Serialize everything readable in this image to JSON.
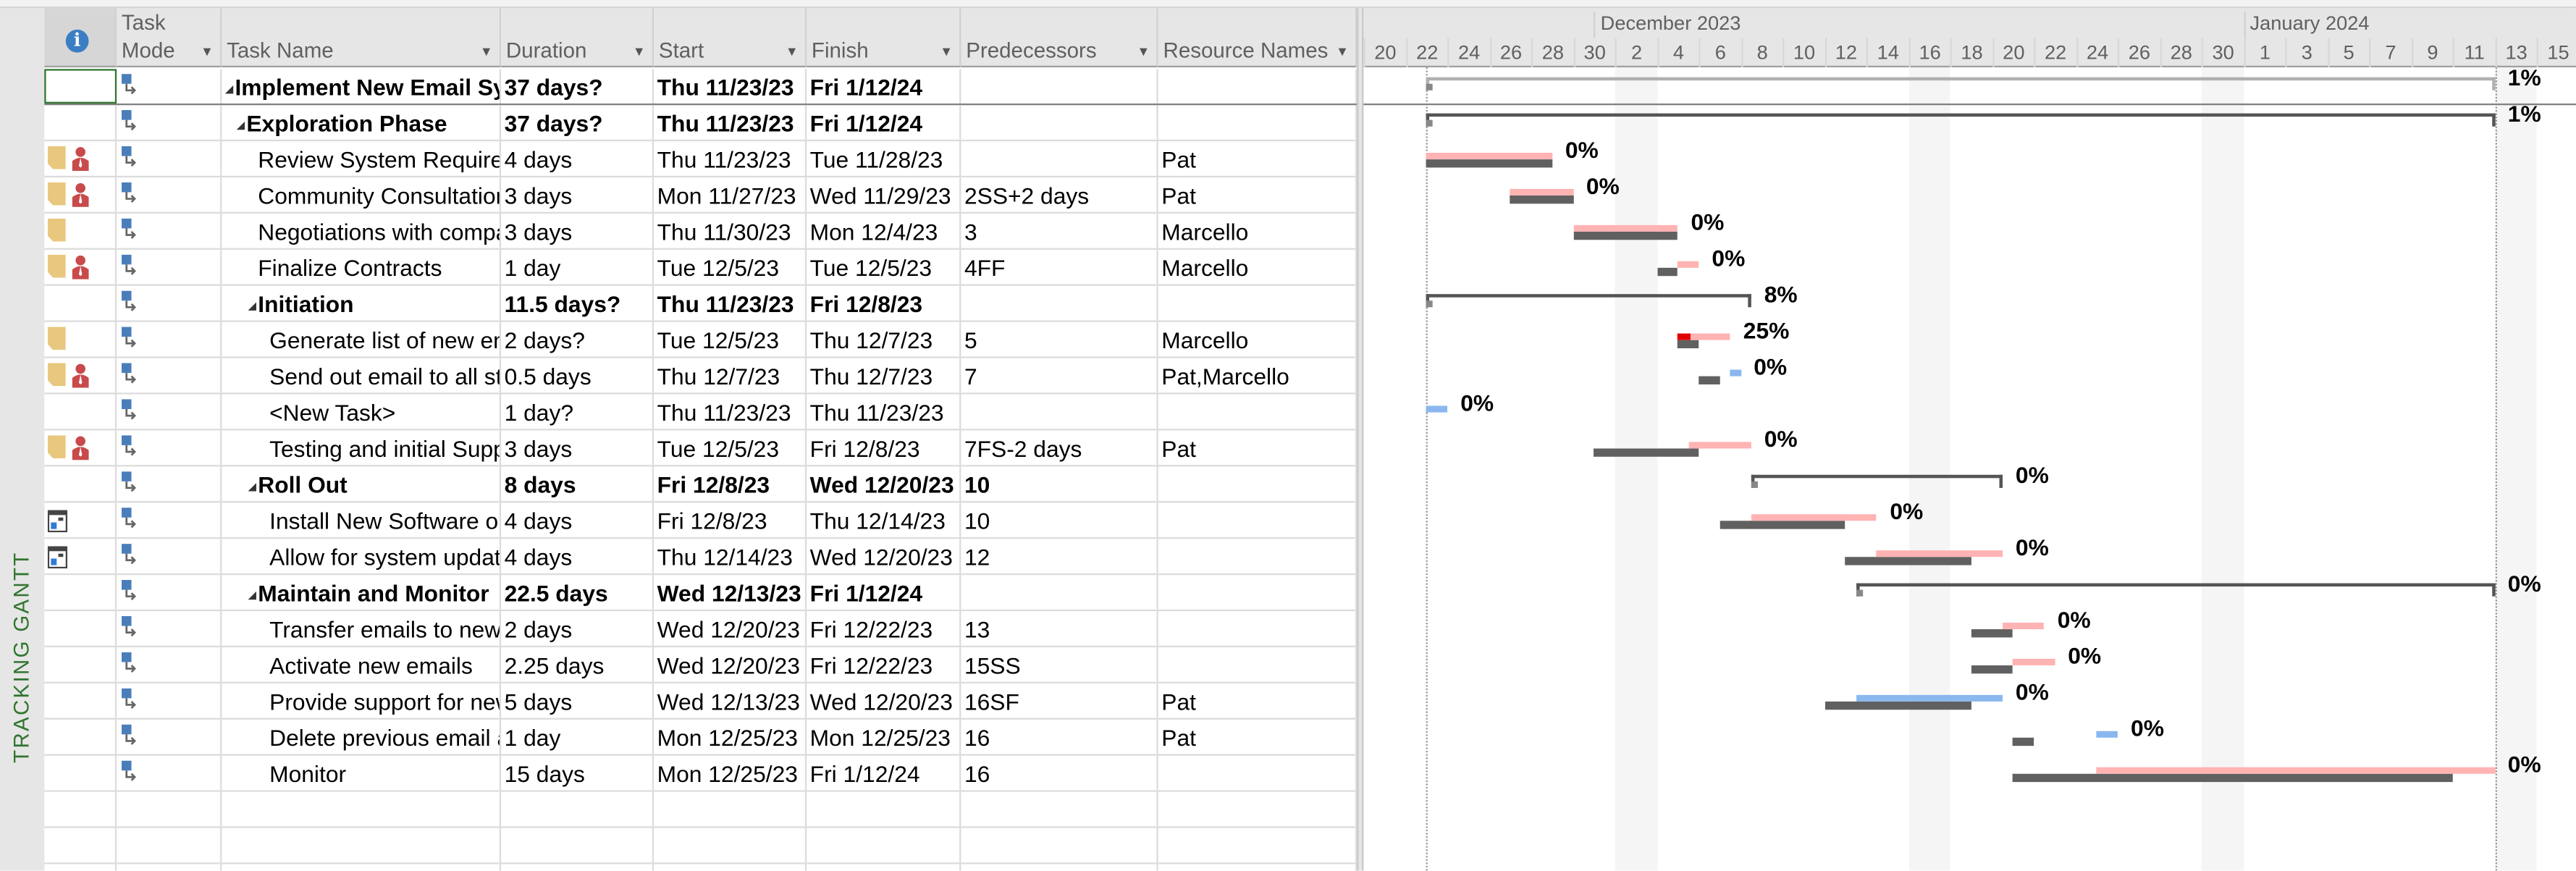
{
  "view_label": "TRACKING GANTT",
  "columns": {
    "indicators_icon": "info-icon",
    "mode_line1": "Task",
    "mode_line2": "Mode",
    "name": "Task Name",
    "duration": "Duration",
    "start": "Start",
    "finish": "Finish",
    "predecessors": "Predecessors",
    "resources": "Resource Names"
  },
  "timescale": {
    "origin": "2023-11-20",
    "months": [
      {
        "label": "December 2023",
        "start": "2023-12-01"
      },
      {
        "label": "January 2024",
        "start": "2024-01-01"
      }
    ],
    "day_labels": [
      "20",
      "22",
      "24",
      "26",
      "28",
      "30",
      "2",
      "4",
      "6",
      "8",
      "10",
      "12",
      "14",
      "16",
      "18",
      "20",
      "22",
      "24",
      "26",
      "28",
      "30",
      "1",
      "3",
      "5",
      "7",
      "9",
      "11",
      "13",
      "15"
    ],
    "shaded_periods": [
      [
        "2023-12-02",
        "2023-12-04"
      ],
      [
        "2023-12-16",
        "2023-12-18"
      ],
      [
        "2023-12-30",
        "2024-01-01"
      ],
      [
        "2024-01-13",
        "2024-01-15"
      ]
    ]
  },
  "colors": {
    "planned": "#ffb3b3",
    "progress": "#e00000",
    "baseline": "#606060",
    "manual": "#8ab8ee",
    "summary": "#555555",
    "project_summary": "#b0b0b0",
    "view_label": "#31752f"
  },
  "tasks": [
    {
      "name": "Implement New Email System",
      "duration": "37 days?",
      "start": "Thu 11/23/23",
      "finish": "Fri 1/12/24",
      "predecessors": "",
      "resources": "",
      "level": 0,
      "summary": true,
      "project": true,
      "indicators": [],
      "bar": {
        "type": "summary",
        "from": "2023-11-23",
        "to": "2024-01-13",
        "pct": "1%"
      }
    },
    {
      "name": "Exploration Phase",
      "duration": "37 days?",
      "start": "Thu 11/23/23",
      "finish": "Fri 1/12/24",
      "predecessors": "",
      "resources": "",
      "level": 1,
      "summary": true,
      "indicators": [],
      "bar": {
        "type": "summary",
        "from": "2023-11-23",
        "to": "2024-01-13",
        "pct": "1%"
      }
    },
    {
      "name": "Review System Requirements",
      "duration": "4 days",
      "start": "Thu 11/23/23",
      "finish": "Tue 11/28/23",
      "predecessors": "",
      "resources": "Pat",
      "level": 2,
      "indicators": [
        "note",
        "resource"
      ],
      "bar": {
        "type": "planned",
        "from": "2023-11-23",
        "to": "2023-11-29",
        "base_from": "2023-11-23",
        "base_to": "2023-11-29",
        "pct": "0%"
      }
    },
    {
      "name": "Community Consultation",
      "duration": "3 days",
      "start": "Mon 11/27/23",
      "finish": "Wed 11/29/23",
      "predecessors": "2SS+2 days",
      "resources": "Pat",
      "level": 2,
      "indicators": [
        "note",
        "resource"
      ],
      "bar": {
        "type": "planned",
        "from": "2023-11-27",
        "to": "2023-11-30",
        "base_from": "2023-11-27",
        "base_to": "2023-11-30",
        "pct": "0%"
      }
    },
    {
      "name": "Negotiations with companies",
      "duration": "3 days",
      "start": "Thu 11/30/23",
      "finish": "Mon 12/4/23",
      "predecessors": "3",
      "resources": "Marcello",
      "level": 2,
      "indicators": [
        "note"
      ],
      "bar": {
        "type": "planned",
        "from": "2023-11-30",
        "to": "2023-12-05",
        "base_from": "2023-11-30",
        "base_to": "2023-12-05",
        "pct": "0%"
      }
    },
    {
      "name": "Finalize Contracts",
      "duration": "1 day",
      "start": "Tue 12/5/23",
      "finish": "Tue 12/5/23",
      "predecessors": "4FF",
      "resources": "Marcello",
      "level": 2,
      "indicators": [
        "note",
        "resource"
      ],
      "bar": {
        "type": "planned",
        "from": "2023-12-05",
        "to": "2023-12-06",
        "base_from": "2023-12-04",
        "base_to": "2023-12-05",
        "pct": "0%"
      }
    },
    {
      "name": "Initiation",
      "duration": "11.5 days?",
      "start": "Thu 11/23/23",
      "finish": "Fri 12/8/23",
      "predecessors": "",
      "resources": "",
      "level": 2,
      "summary": true,
      "indicators": [],
      "bar": {
        "type": "summary",
        "from": "2023-11-23",
        "to": "2023-12-08T12:00",
        "pct": "8%"
      }
    },
    {
      "name": "Generate list of new emails",
      "duration": "2 days?",
      "start": "Tue 12/5/23",
      "finish": "Thu 12/7/23",
      "predecessors": "5",
      "resources": "Marcello",
      "level": 3,
      "indicators": [
        "note"
      ],
      "bar": {
        "type": "planned",
        "from": "2023-12-05",
        "to": "2023-12-07T12:00",
        "base_from": "2023-12-05",
        "base_to": "2023-12-06",
        "pct": "25%",
        "progress": 0.25
      }
    },
    {
      "name": "Send out email to all staff",
      "duration": "0.5 days",
      "start": "Thu 12/7/23",
      "finish": "Thu 12/7/23",
      "predecessors": "7",
      "resources": "Pat,Marcello",
      "level": 3,
      "indicators": [
        "note",
        "resource"
      ],
      "bar": {
        "type": "manual",
        "from": "2023-12-07T12:00",
        "to": "2023-12-08",
        "base_from": "2023-12-06",
        "base_to": "2023-12-07",
        "pct": "0%"
      }
    },
    {
      "name": "<New Task>",
      "duration": "1 day?",
      "start": "Thu 11/23/23",
      "finish": "Thu 11/23/23",
      "predecessors": "",
      "resources": "",
      "level": 3,
      "indicators": [],
      "bar": {
        "type": "manual",
        "from": "2023-11-23",
        "to": "2023-11-24",
        "pct": "0%"
      }
    },
    {
      "name": "Testing and initial Support",
      "duration": "3 days",
      "start": "Tue 12/5/23",
      "finish": "Fri 12/8/23",
      "predecessors": "7FS-2 days",
      "resources": "Pat",
      "level": 3,
      "indicators": [
        "note",
        "resource"
      ],
      "bar": {
        "type": "planned",
        "from": "2023-12-05T12:00",
        "to": "2023-12-08T12:00",
        "base_from": "2023-12-01",
        "base_to": "2023-12-06",
        "pct": "0%"
      }
    },
    {
      "name": "Roll Out",
      "duration": "8 days",
      "start": "Fri 12/8/23",
      "finish": "Wed 12/20/23",
      "predecessors": "10",
      "resources": "",
      "level": 2,
      "summary": true,
      "indicators": [],
      "bar": {
        "type": "summary",
        "from": "2023-12-08T12:00",
        "to": "2023-12-20T12:00",
        "pct": "0%"
      }
    },
    {
      "name": "Install New Software on all computers",
      "duration": "4 days",
      "start": "Fri 12/8/23",
      "finish": "Thu 12/14/23",
      "predecessors": "10",
      "resources": "",
      "level": 3,
      "indicators": [
        "calendar"
      ],
      "bar": {
        "type": "planned",
        "from": "2023-12-08T12:00",
        "to": "2023-12-14T12:00",
        "base_from": "2023-12-07",
        "base_to": "2023-12-13",
        "pct": "0%"
      }
    },
    {
      "name": "Allow for system updates",
      "duration": "4 days",
      "start": "Thu 12/14/23",
      "finish": "Wed 12/20/23",
      "predecessors": "12",
      "resources": "",
      "level": 3,
      "indicators": [
        "calendar"
      ],
      "bar": {
        "type": "planned",
        "from": "2023-12-14T12:00",
        "to": "2023-12-20T12:00",
        "base_from": "2023-12-13",
        "base_to": "2023-12-19",
        "pct": "0%"
      }
    },
    {
      "name": "Maintain and Monitor",
      "duration": "22.5 days",
      "start": "Wed 12/13/23",
      "finish": "Fri 1/12/24",
      "predecessors": "",
      "resources": "",
      "level": 2,
      "summary": true,
      "indicators": [],
      "bar": {
        "type": "summary",
        "from": "2023-12-13T12:00",
        "to": "2024-01-13",
        "pct": "0%"
      }
    },
    {
      "name": "Transfer emails to new system",
      "duration": "2 days",
      "start": "Wed 12/20/23",
      "finish": "Fri 12/22/23",
      "predecessors": "13",
      "resources": "",
      "level": 3,
      "indicators": [],
      "bar": {
        "type": "planned",
        "from": "2023-12-20T12:00",
        "to": "2023-12-22T12:00",
        "base_from": "2023-12-19",
        "base_to": "2023-12-21",
        "pct": "0%"
      }
    },
    {
      "name": "Activate new emails",
      "duration": "2.25 days",
      "start": "Wed 12/20/23",
      "finish": "Fri 12/22/23",
      "predecessors": "15SS",
      "resources": "",
      "level": 3,
      "indicators": [],
      "bar": {
        "type": "planned",
        "from": "2023-12-21",
        "to": "2023-12-23",
        "base_from": "2023-12-19",
        "base_to": "2023-12-21",
        "pct": "0%"
      }
    },
    {
      "name": "Provide support for new system",
      "duration": "5 days",
      "start": "Wed 12/13/23",
      "finish": "Wed 12/20/23",
      "predecessors": "16SF",
      "resources": "Pat",
      "level": 3,
      "indicators": [],
      "bar": {
        "type": "manual",
        "from": "2023-12-13T12:00",
        "to": "2023-12-20T12:00",
        "base_from": "2023-12-12",
        "base_to": "2023-12-19",
        "pct": "0%"
      }
    },
    {
      "name": "Delete previous email accounts",
      "duration": "1 day",
      "start": "Mon 12/25/23",
      "finish": "Mon 12/25/23",
      "predecessors": "16",
      "resources": "Pat",
      "level": 3,
      "indicators": [],
      "bar": {
        "type": "manual",
        "from": "2023-12-25",
        "to": "2023-12-26",
        "base_from": "2023-12-21",
        "base_to": "2023-12-22",
        "pct": "0%"
      }
    },
    {
      "name": "Monitor",
      "duration": "15 days",
      "start": "Mon 12/25/23",
      "finish": "Fri 1/12/24",
      "predecessors": "16",
      "resources": "",
      "level": 3,
      "indicators": [],
      "bar": {
        "type": "planned",
        "from": "2023-12-25",
        "to": "2024-01-13",
        "base_from": "2023-12-21",
        "base_to": "2024-01-11",
        "pct": "0%"
      }
    }
  ],
  "empty_rows": 3
}
